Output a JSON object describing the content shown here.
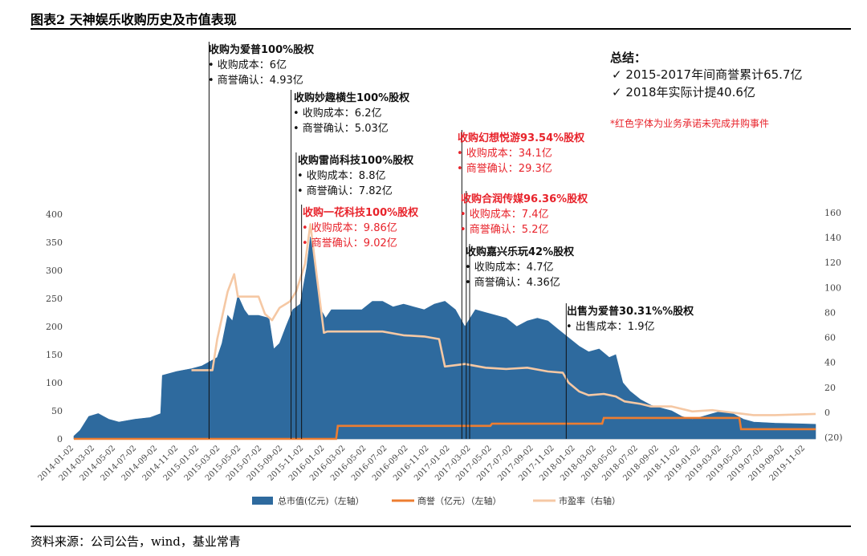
{
  "figure": {
    "title": "图表2 天神娱乐收购历史及市值表现",
    "source": "资料来源：公司公告，wind，基业常青"
  },
  "summary": {
    "title": "总结：",
    "items": [
      "✓  2015-2017年间商誉累计65.7亿",
      "✓  2018年实际计提40.6亿"
    ],
    "note": "*红色字体为业务承诺未完成并购事件"
  },
  "colors": {
    "market_cap": "#2e6a9e",
    "goodwill": "#ed7d31",
    "pe": "#f5c8a4",
    "red_text": "#e8232b"
  },
  "chart_data": {
    "type": "area",
    "y_left": {
      "ylim": [
        0,
        400
      ],
      "ticks": [
        "0",
        "50",
        "100",
        "150",
        "200",
        "250",
        "300",
        "350",
        "400"
      ]
    },
    "y_right": {
      "ylim": [
        -20,
        160
      ],
      "ticks": [
        "(20)",
        "0",
        "20",
        "40",
        "60",
        "80",
        "100",
        "120",
        "140",
        "160"
      ]
    },
    "x_ticks": [
      "2014-01-02",
      "2014-03-02",
      "2014-05-02",
      "2014-07-02",
      "2014-09-02",
      "2014-11-02",
      "2015-01-02",
      "2015-03-02",
      "2015-05-02",
      "2015-07-02",
      "2015-09-02",
      "2015-11-02",
      "2016-01-02",
      "2016-03-02",
      "2016-05-02",
      "2016-07-02",
      "2016-09-02",
      "2016-11-02",
      "2017-01-02",
      "2017-03-02",
      "2017-05-02",
      "2017-07-02",
      "2017-09-02",
      "2017-11-02",
      "2018-01-02",
      "2018-03-02",
      "2018-05-02",
      "2018-07-02",
      "2018-09-02",
      "2018-11-02",
      "2019-01-02",
      "2019-03-02",
      "2019-05-02",
      "2019-07-02",
      "2019-09-02",
      "2019-11-02"
    ],
    "series": [
      {
        "name": "总市值(亿元)（左轴）",
        "axis": "left",
        "style": "area",
        "points": [
          [
            "2014-01-02",
            5
          ],
          [
            "2014-01-20",
            15
          ],
          [
            "2014-02-15",
            40
          ],
          [
            "2014-03-15",
            45
          ],
          [
            "2014-04-15",
            35
          ],
          [
            "2014-05-15",
            30
          ],
          [
            "2014-07-01",
            35
          ],
          [
            "2014-08-15",
            38
          ],
          [
            "2014-09-15",
            45
          ],
          [
            "2014-09-20",
            113
          ],
          [
            "2014-11-01",
            120
          ],
          [
            "2014-12-15",
            125
          ],
          [
            "2015-01-15",
            130
          ],
          [
            "2015-03-01",
            145
          ],
          [
            "2015-03-15",
            170
          ],
          [
            "2015-04-01",
            220
          ],
          [
            "2015-04-15",
            210
          ],
          [
            "2015-05-01",
            255
          ],
          [
            "2015-05-20",
            230
          ],
          [
            "2015-06-01",
            220
          ],
          [
            "2015-07-01",
            220
          ],
          [
            "2015-08-01",
            215
          ],
          [
            "2015-08-15",
            160
          ],
          [
            "2015-09-01",
            170
          ],
          [
            "2015-09-20",
            200
          ],
          [
            "2015-10-10",
            230
          ],
          [
            "2015-11-01",
            240
          ],
          [
            "2015-11-20",
            305
          ],
          [
            "2015-12-01",
            360
          ],
          [
            "2015-12-10",
            330
          ],
          [
            "2015-12-20",
            280
          ],
          [
            "2016-01-01",
            230
          ],
          [
            "2016-01-15",
            215
          ],
          [
            "2016-02-01",
            230
          ],
          [
            "2016-03-01",
            230
          ],
          [
            "2016-04-01",
            230
          ],
          [
            "2016-05-01",
            230
          ],
          [
            "2016-06-01",
            245
          ],
          [
            "2016-07-01",
            245
          ],
          [
            "2016-08-01",
            235
          ],
          [
            "2016-09-01",
            240
          ],
          [
            "2016-10-01",
            235
          ],
          [
            "2016-11-01",
            230
          ],
          [
            "2016-12-01",
            240
          ],
          [
            "2017-01-01",
            245
          ],
          [
            "2017-02-01",
            230
          ],
          [
            "2017-03-01",
            200
          ],
          [
            "2017-04-01",
            230
          ],
          [
            "2017-05-01",
            225
          ],
          [
            "2017-06-01",
            220
          ],
          [
            "2017-07-01",
            215
          ],
          [
            "2017-08-01",
            200
          ],
          [
            "2017-09-01",
            210
          ],
          [
            "2017-10-01",
            215
          ],
          [
            "2017-11-01",
            210
          ],
          [
            "2017-12-01",
            195
          ],
          [
            "2018-01-01",
            180
          ],
          [
            "2018-02-01",
            165
          ],
          [
            "2018-03-01",
            155
          ],
          [
            "2018-04-01",
            160
          ],
          [
            "2018-05-01",
            145
          ],
          [
            "2018-05-20",
            150
          ],
          [
            "2018-06-10",
            100
          ],
          [
            "2018-07-01",
            85
          ],
          [
            "2018-08-01",
            70
          ],
          [
            "2018-09-01",
            60
          ],
          [
            "2018-10-01",
            55
          ],
          [
            "2018-11-01",
            50
          ],
          [
            "2018-12-01",
            40
          ],
          [
            "2019-01-01",
            35
          ],
          [
            "2019-02-01",
            40
          ],
          [
            "2019-03-01",
            45
          ],
          [
            "2019-04-01",
            50
          ],
          [
            "2019-05-01",
            45
          ],
          [
            "2019-06-01",
            35
          ],
          [
            "2019-07-01",
            30
          ],
          [
            "2019-09-01",
            28
          ],
          [
            "2019-11-01",
            27
          ],
          [
            "2019-12-31",
            26
          ]
        ]
      },
      {
        "name": "商誉（亿元）（左轴）",
        "axis": "left",
        "style": "line",
        "points": [
          [
            "2014-01-02",
            0
          ],
          [
            "2016-02-15",
            0
          ],
          [
            "2016-02-20",
            36
          ],
          [
            "2017-05-15",
            36
          ],
          [
            "2017-05-20",
            42
          ],
          [
            "2018-04-10",
            42
          ],
          [
            "2018-04-15",
            58
          ],
          [
            "2019-05-20",
            58
          ],
          [
            "2019-05-25",
            27
          ],
          [
            "2019-12-31",
            27
          ]
        ]
      },
      {
        "name": "市盈率（右轴）",
        "axis": "right",
        "style": "line",
        "points": [
          [
            "2014-12-15",
            35
          ],
          [
            "2015-02-15",
            35
          ],
          [
            "2015-03-01",
            60
          ],
          [
            "2015-04-01",
            98
          ],
          [
            "2015-04-20",
            112
          ],
          [
            "2015-05-01",
            94
          ],
          [
            "2015-06-01",
            94
          ],
          [
            "2015-07-01",
            94
          ],
          [
            "2015-07-20",
            80
          ],
          [
            "2015-08-10",
            75
          ],
          [
            "2015-09-01",
            85
          ],
          [
            "2015-10-01",
            90
          ],
          [
            "2015-10-20",
            98
          ],
          [
            "2015-11-15",
            120
          ],
          [
            "2015-12-01",
            152
          ],
          [
            "2015-12-20",
            110
          ],
          [
            "2016-01-10",
            65
          ],
          [
            "2016-01-20",
            66
          ],
          [
            "2016-03-01",
            66
          ],
          [
            "2016-05-01",
            66
          ],
          [
            "2016-07-01",
            66
          ],
          [
            "2016-09-01",
            63
          ],
          [
            "2016-11-01",
            62
          ],
          [
            "2016-12-15",
            60
          ],
          [
            "2017-01-01",
            38
          ],
          [
            "2017-02-01",
            39
          ],
          [
            "2017-03-01",
            40
          ],
          [
            "2017-05-01",
            37
          ],
          [
            "2017-07-01",
            36
          ],
          [
            "2017-09-01",
            37
          ],
          [
            "2017-11-01",
            34
          ],
          [
            "2017-12-15",
            33
          ],
          [
            "2018-01-01",
            25
          ],
          [
            "2018-02-01",
            18
          ],
          [
            "2018-03-01",
            15
          ],
          [
            "2018-04-15",
            16
          ],
          [
            "2018-05-20",
            14
          ],
          [
            "2018-06-15",
            10
          ],
          [
            "2018-08-01",
            8
          ],
          [
            "2018-09-01",
            6
          ],
          [
            "2018-11-01",
            6
          ],
          [
            "2019-01-01",
            2
          ],
          [
            "2019-03-01",
            3
          ],
          [
            "2019-05-01",
            1
          ],
          [
            "2019-07-01",
            -1
          ],
          [
            "2019-09-01",
            -1
          ],
          [
            "2019-12-31",
            0
          ]
        ]
      }
    ],
    "events": [
      {
        "date": "2015-02-05",
        "color": "black",
        "title": "收购为爱普100%股权",
        "lines": [
          "•  收购成本：6亿",
          "•  商誉确认：4.93亿"
        ]
      },
      {
        "date": "2015-10-05",
        "color": "black",
        "title": "收购妙趣横生100%股权",
        "lines": [
          "•  收购成本：6.2亿",
          "•  商誉确认：5.03亿"
        ]
      },
      {
        "date": "2015-10-20",
        "color": "black",
        "title": "收购雷尚科技100%股权",
        "lines": [
          "•  收购成本：8.8亿",
          "•  商誉确认：7.82亿"
        ]
      },
      {
        "date": "2015-11-05",
        "color": "red",
        "title": "收购一花科技100%股权",
        "lines": [
          "•  收购成本：9.86亿",
          "•  商誉确认：9.02亿"
        ]
      },
      {
        "date": "2017-02-20",
        "color": "red",
        "title": "收购幻想悦游93.54%股权",
        "lines": [
          "•  收购成本：34.1亿",
          "•  商誉确认：29.3亿"
        ]
      },
      {
        "date": "2017-03-05",
        "color": "red",
        "title": "收购合润传媒96.36%股权",
        "lines": [
          "•  收购成本：7.4亿",
          "•  商誉确认：5.2亿"
        ]
      },
      {
        "date": "2017-03-15",
        "color": "black",
        "title": "收购嘉兴乐玩42%股权",
        "lines": [
          "•  收购成本：4.7亿",
          "•  商誉确认：4.36亿"
        ]
      },
      {
        "date": "2017-12-25",
        "color": "black",
        "title": "出售为爱普30.31%%股权",
        "lines": [
          "•  出售成本：1.9亿"
        ]
      }
    ]
  }
}
